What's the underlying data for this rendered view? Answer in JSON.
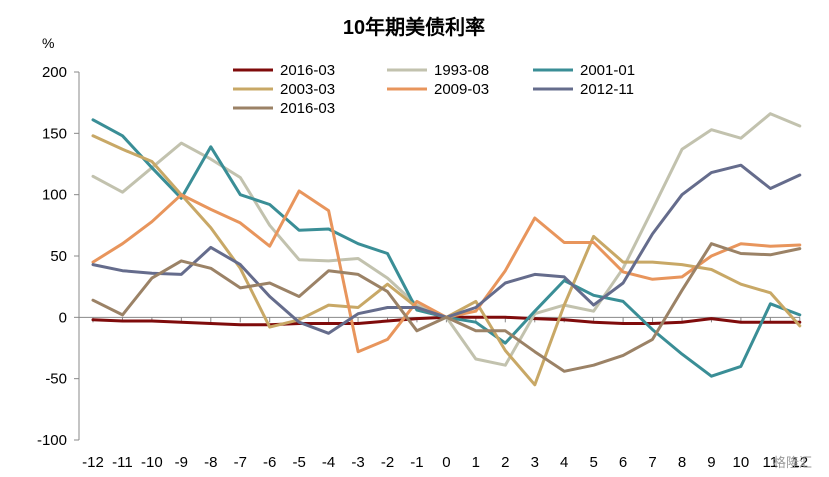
{
  "chart_data": {
    "type": "line",
    "title": "10年期美债利率",
    "ylabel": "%",
    "xlabel": "",
    "x": [
      -12,
      -11,
      -10,
      -9,
      -8,
      -7,
      -6,
      -5,
      -4,
      -3,
      -2,
      -1,
      0,
      1,
      2,
      3,
      4,
      5,
      6,
      7,
      8,
      9,
      10,
      11,
      12
    ],
    "x_tick_labels": [
      "-12",
      "-11",
      "-10",
      "-9",
      "-8",
      "-7",
      "-6",
      "-5",
      "-4",
      "-3",
      "-2",
      "-1",
      "0",
      "1",
      "2",
      "3",
      "4",
      "5",
      "6",
      "7",
      "8",
      "9",
      "10",
      "11",
      "12"
    ],
    "ylim": [
      -100,
      200
    ],
    "y_ticks": [
      -100,
      -50,
      0,
      50,
      100,
      150,
      200
    ],
    "grid": false,
    "legend_position": "top",
    "series": [
      {
        "name": "2016-03",
        "color": "#7f0b0b",
        "values": [
          -2,
          -3,
          -3,
          -4,
          -5,
          -6,
          -6,
          -5,
          -5,
          -5,
          -3,
          -1,
          0,
          0,
          0,
          -1,
          -2,
          -4,
          -5,
          -5,
          -4,
          -1,
          -4,
          -4,
          -4
        ]
      },
      {
        "name": "1993-08",
        "color": "#c2c2ae",
        "values": [
          115,
          102,
          122,
          142,
          129,
          114,
          75,
          47,
          46,
          48,
          32,
          10,
          0,
          -34,
          -39,
          3,
          10,
          5,
          40,
          88,
          137,
          153,
          146,
          166,
          156
        ]
      },
      {
        "name": "2001-01",
        "color": "#3a8e96",
        "values": [
          161,
          148,
          122,
          97,
          139,
          100,
          92,
          71,
          72,
          60,
          52,
          6,
          0,
          -4,
          -21,
          5,
          30,
          18,
          13,
          -10,
          -30,
          -48,
          -40,
          11,
          2
        ]
      },
      {
        "name": "2003-03",
        "color": "#c8a866",
        "values": [
          148,
          137,
          127,
          100,
          73,
          40,
          -8,
          -2,
          10,
          8,
          27,
          8,
          0,
          13,
          -27,
          -55,
          10,
          66,
          45,
          45,
          43,
          39,
          27,
          20,
          -7
        ]
      },
      {
        "name": "2009-03",
        "color": "#e8955c",
        "values": [
          45,
          60,
          78,
          100,
          88,
          77,
          58,
          103,
          87,
          -28,
          -18,
          13,
          0,
          5,
          38,
          81,
          61,
          61,
          37,
          31,
          33,
          50,
          60,
          58,
          59
        ]
      },
      {
        "name": "2012-11",
        "color": "#656c8c",
        "values": [
          43,
          38,
          36,
          35,
          57,
          43,
          17,
          -4,
          -13,
          3,
          8,
          8,
          0,
          8,
          28,
          35,
          33,
          10,
          28,
          68,
          100,
          118,
          124,
          105,
          116
        ]
      },
      {
        "name": "2016-03",
        "color": "#9b8266",
        "values": [
          14,
          2,
          32,
          46,
          40,
          24,
          28,
          17,
          38,
          35,
          21,
          -11,
          0,
          -11,
          -11,
          -28,
          -44,
          -39,
          -31,
          -18,
          22,
          60,
          52,
          51,
          56
        ]
      }
    ]
  },
  "watermark_text": "格隆汇"
}
